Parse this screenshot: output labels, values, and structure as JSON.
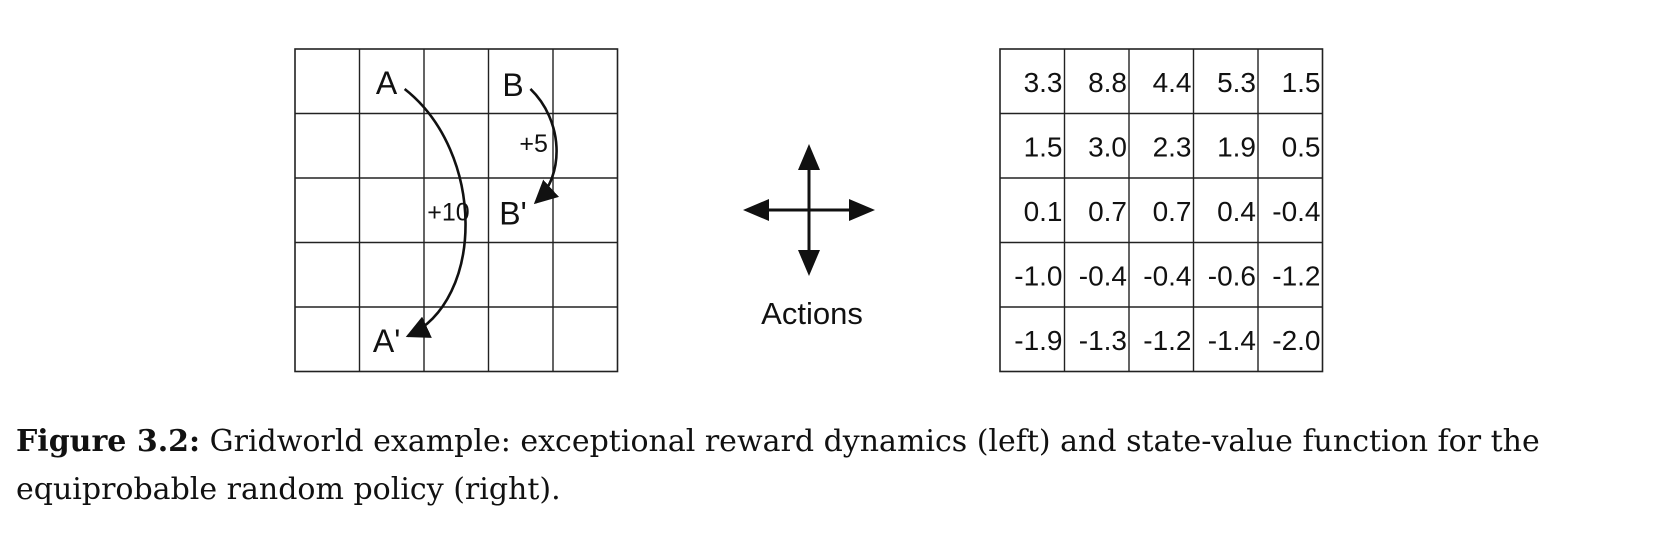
{
  "left_grid": {
    "rows": 5,
    "cols": 5,
    "labels": {
      "a": "A",
      "b": "B",
      "a_prime": "A'",
      "b_prime": "B'"
    },
    "rewards": {
      "a_to_a_prime": "+10",
      "b_to_b_prime": "+5"
    }
  },
  "actions": {
    "label": "Actions",
    "icon": "four-direction-arrows-icon"
  },
  "value_grid": {
    "rows": [
      [
        "3.3",
        "8.8",
        "4.4",
        "5.3",
        "1.5"
      ],
      [
        "1.5",
        "3.0",
        "2.3",
        "1.9",
        "0.5"
      ],
      [
        "0.1",
        "0.7",
        "0.7",
        "0.4",
        "-0.4"
      ],
      [
        "-1.0",
        "-0.4",
        "-0.4",
        "-0.6",
        "-1.2"
      ],
      [
        "-1.9",
        "-1.3",
        "-1.2",
        "-1.4",
        "-2.0"
      ]
    ]
  },
  "caption": {
    "label": "Figure 3.2:",
    "text": "Gridworld example: exceptional reward dynamics (left) and state-value function for the equiprobable random policy (right)."
  }
}
